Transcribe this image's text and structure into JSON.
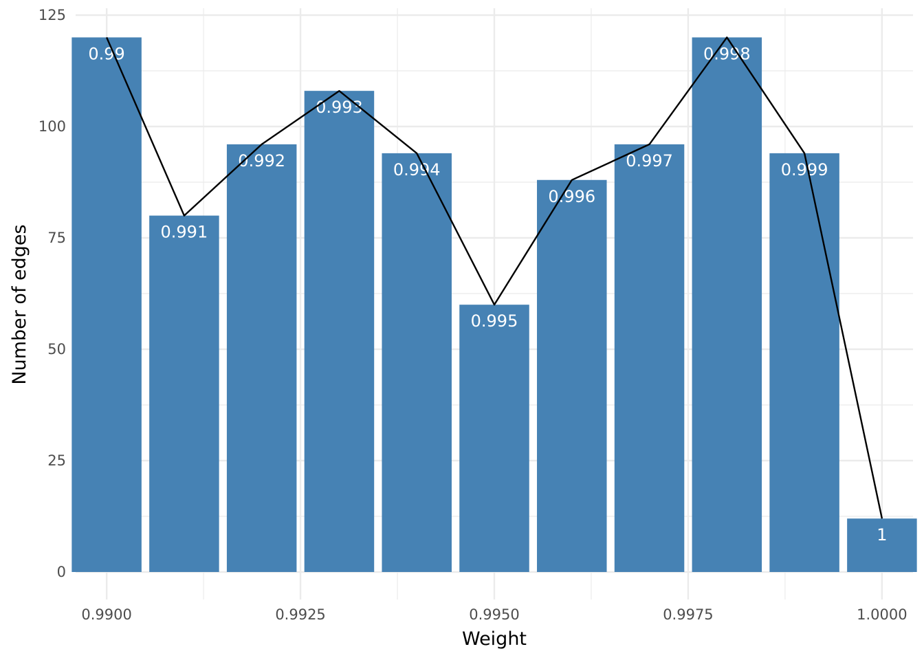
{
  "chart_data": {
    "type": "bar",
    "title": "",
    "xlabel": "Weight",
    "ylabel": "Number of edges",
    "xlim": [
      0.9896,
      1.0004
    ],
    "ylim": [
      0,
      125
    ],
    "x_ticks": [
      0.99,
      0.9925,
      0.995,
      0.9975,
      1.0
    ],
    "x_tick_labels": [
      "0.9900",
      "0.9925",
      "0.9950",
      "0.9975",
      "1.0000"
    ],
    "y_ticks": [
      0,
      25,
      50,
      75,
      100,
      125
    ],
    "y_tick_labels": [
      "0",
      "25",
      "50",
      "75",
      "100",
      "125"
    ],
    "grid": true,
    "legend": "none",
    "x": [
      0.99,
      0.991,
      0.992,
      0.993,
      0.994,
      0.995,
      0.996,
      0.997,
      0.998,
      0.999,
      1.0
    ],
    "values": [
      120,
      80,
      96,
      108,
      94,
      60,
      88,
      96,
      120,
      94,
      12
    ],
    "bar_labels": [
      "0.99",
      "0.991",
      "0.992",
      "0.993",
      "0.994",
      "0.995",
      "0.996",
      "0.997",
      "0.998",
      "0.999",
      "1"
    ],
    "bar_color": "#4682b4",
    "line_color": "#000000",
    "grid_color": "#ebebeb"
  }
}
